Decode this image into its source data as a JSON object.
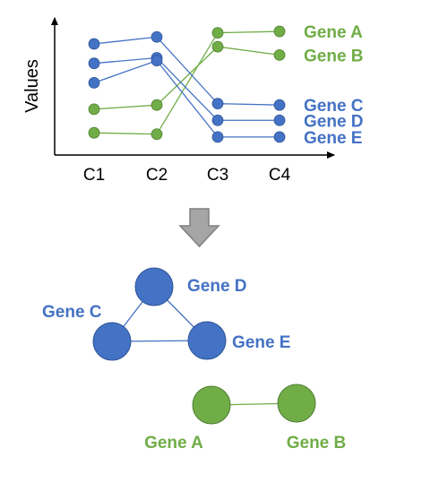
{
  "colors": {
    "blue": "#4472C4",
    "blue_dark": "#2F5597",
    "green": "#70AD47",
    "green_dark": "#507E32",
    "arrow_fill": "#A5A5A5",
    "arrow_stroke": "#7F7F7F",
    "axis": "#000000"
  },
  "chart_data": {
    "type": "line",
    "ylabel": "Values",
    "categories": [
      "C1",
      "C2",
      "C3",
      "C4"
    ],
    "ylim": [
      0,
      10
    ],
    "series": [
      {
        "name": "Gene A",
        "color": "green",
        "values": [
          1.6,
          1.5,
          8.8,
          8.9
        ]
      },
      {
        "name": "Gene B",
        "color": "green",
        "values": [
          3.3,
          3.6,
          7.8,
          7.2
        ]
      },
      {
        "name": "Gene C",
        "color": "blue",
        "values": [
          8.0,
          8.5,
          3.7,
          3.6
        ]
      },
      {
        "name": "Gene D",
        "color": "blue",
        "values": [
          6.6,
          7.0,
          2.5,
          2.5
        ]
      },
      {
        "name": "Gene E",
        "color": "blue",
        "values": [
          5.2,
          6.8,
          1.3,
          1.3
        ]
      }
    ]
  },
  "network": {
    "nodes": [
      {
        "id": "geneD",
        "label": "Gene D",
        "color": "blue"
      },
      {
        "id": "geneC",
        "label": "Gene C",
        "color": "blue"
      },
      {
        "id": "geneE",
        "label": "Gene E",
        "color": "blue"
      },
      {
        "id": "geneA",
        "label": "Gene A",
        "color": "green"
      },
      {
        "id": "geneB",
        "label": "Gene B",
        "color": "green"
      }
    ],
    "edges": [
      {
        "from": "geneD",
        "to": "geneC",
        "color": "blue"
      },
      {
        "from": "geneD",
        "to": "geneE",
        "color": "blue"
      },
      {
        "from": "geneC",
        "to": "geneE",
        "color": "blue"
      },
      {
        "from": "geneA",
        "to": "geneB",
        "color": "green"
      }
    ]
  }
}
